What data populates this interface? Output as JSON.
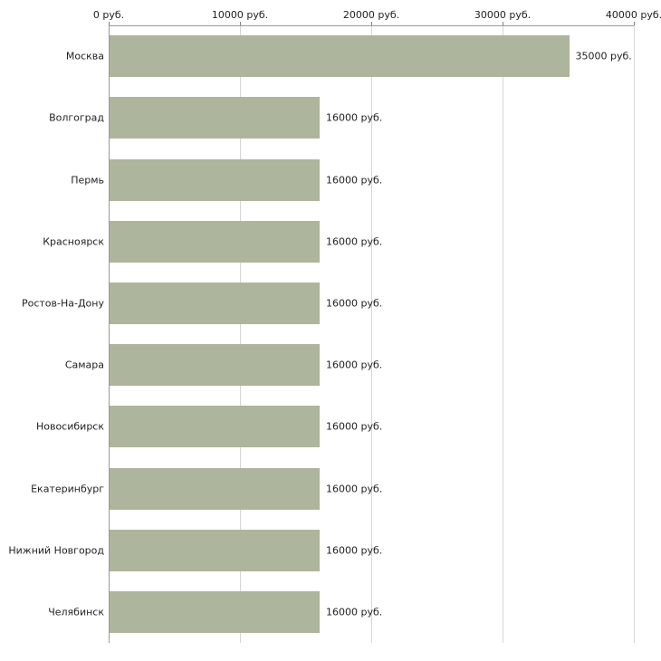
{
  "chart_data": {
    "type": "bar",
    "orientation": "horizontal",
    "title": "",
    "xlabel": "",
    "ylabel": "",
    "categories": [
      "Москва",
      "Волгоград",
      "Пермь",
      "Красноярск",
      "Ростов-На-Дону",
      "Самара",
      "Новосибирск",
      "Екатеринбург",
      "Нижний Новгород",
      "Челябинск"
    ],
    "values": [
      35000,
      16000,
      16000,
      16000,
      16000,
      16000,
      16000,
      16000,
      16000,
      16000
    ],
    "value_labels": [
      "35000 руб.",
      "16000 руб.",
      "16000 руб.",
      "16000 руб.",
      "16000 руб.",
      "16000 руб.",
      "16000 руб.",
      "16000 руб.",
      "16000 руб.",
      "16000 руб."
    ],
    "x_ticks": [
      0,
      10000,
      20000,
      30000,
      40000
    ],
    "x_tick_labels": [
      "0 руб.",
      "10000 руб.",
      "20000 руб.",
      "30000 руб.",
      "40000 руб."
    ],
    "xlim": [
      0,
      40000
    ],
    "grid": true,
    "axis_position": "top",
    "legend": "none",
    "bar_color": "#adb59c",
    "gridline_color": "#d6d6d6",
    "axis_color": "#9a9a9a",
    "text_color": "#222222",
    "background_color": "#ffffff"
  }
}
